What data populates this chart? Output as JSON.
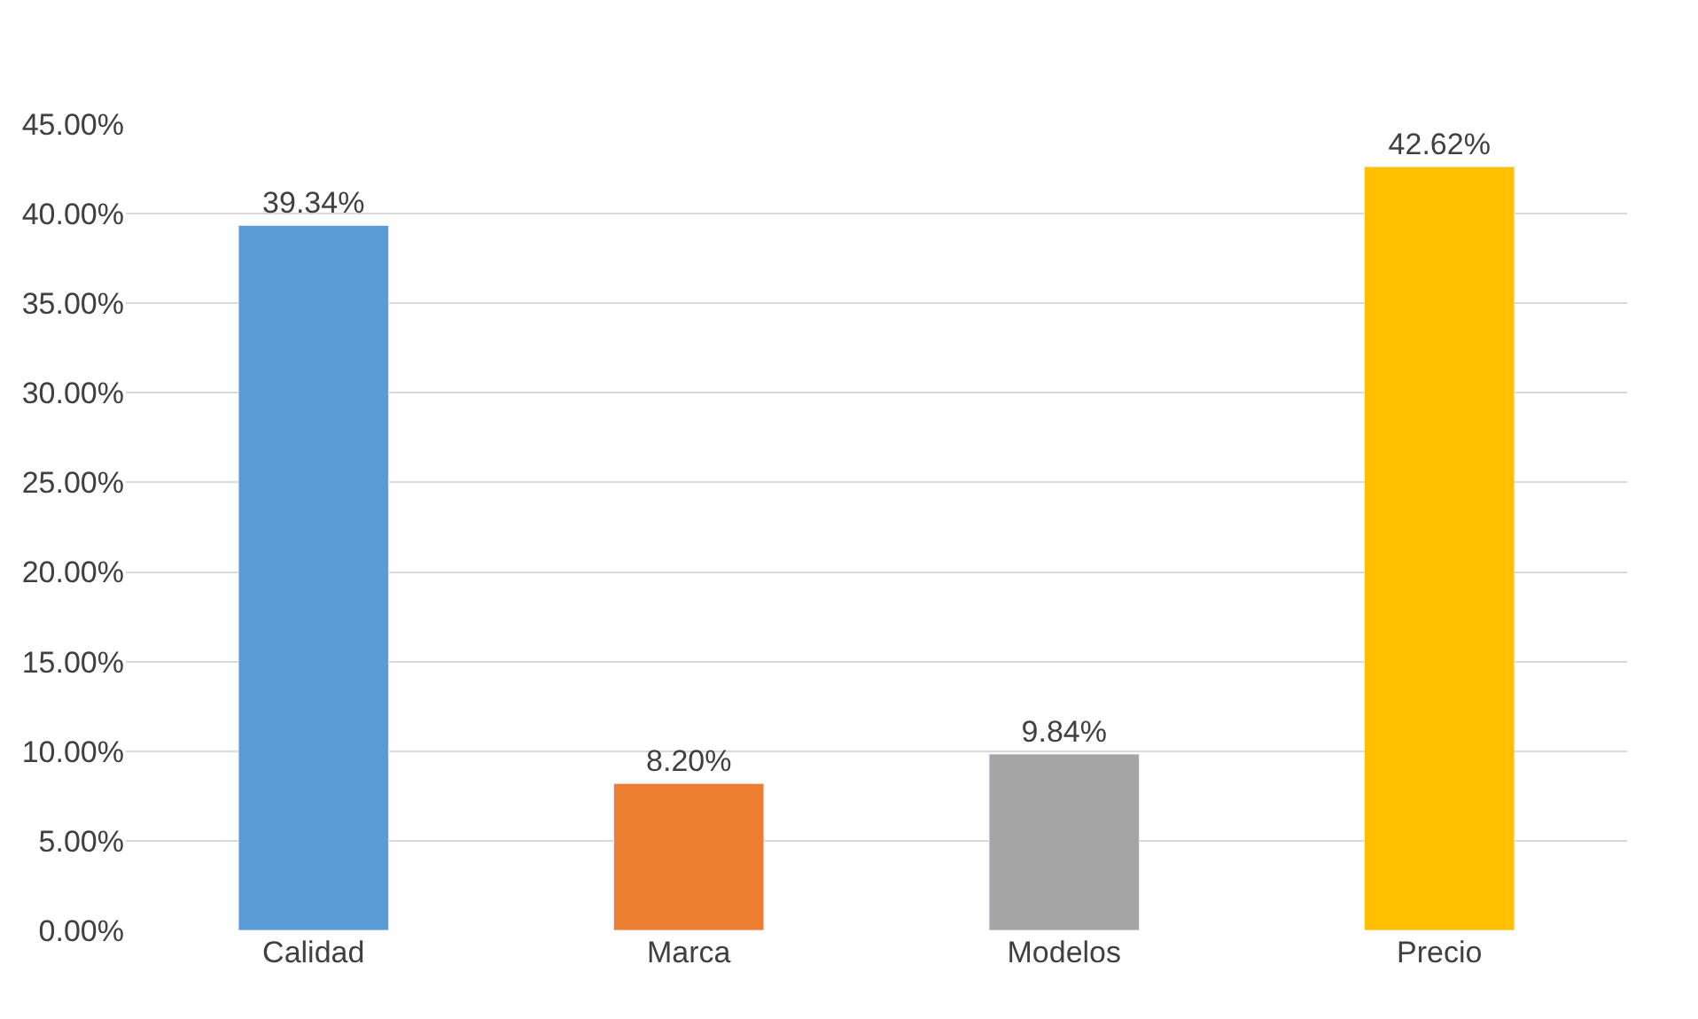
{
  "chart_data": {
    "type": "bar",
    "categories": [
      "Calidad",
      "Marca",
      "Modelos",
      "Precio"
    ],
    "values": [
      39.34,
      8.2,
      9.84,
      42.62
    ],
    "colors": [
      "#5b9bd5",
      "#ed7d31",
      "#a5a5a5",
      "#ffc000"
    ],
    "value_labels": [
      "39.34%",
      "8.20%",
      "9.84%",
      "42.62%"
    ],
    "ylim": [
      0,
      45
    ],
    "yticks": [
      {
        "value": 0,
        "label": "0.00%"
      },
      {
        "value": 5,
        "label": "5.00%"
      },
      {
        "value": 10,
        "label": "10.00%"
      },
      {
        "value": 15,
        "label": "15.00%"
      },
      {
        "value": 20,
        "label": "20.00%"
      },
      {
        "value": 25,
        "label": "25.00%"
      },
      {
        "value": 30,
        "label": "30.00%"
      },
      {
        "value": 35,
        "label": "35.00%"
      },
      {
        "value": 40,
        "label": "40.00%"
      },
      {
        "value": 45,
        "label": "45.00%"
      }
    ],
    "grid": "y"
  }
}
